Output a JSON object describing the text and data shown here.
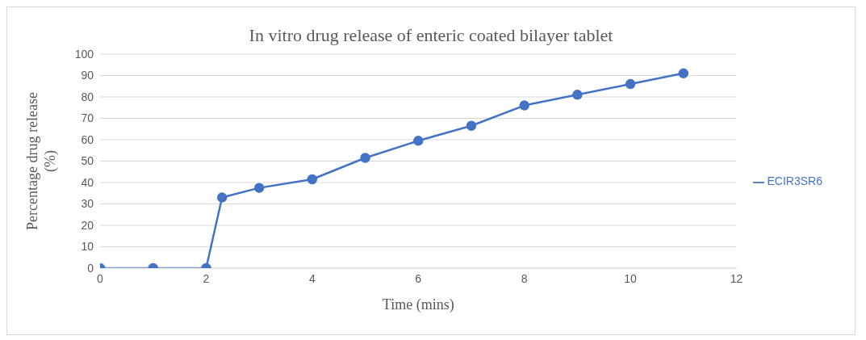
{
  "chart_data": {
    "type": "line",
    "title": "In vitro drug release of enteric coated bilayer tablet",
    "xlabel": "Time (mins)",
    "ylabel": "Percentage drug release (%)",
    "x": [
      0,
      1,
      2,
      2.3,
      3,
      4,
      5,
      6,
      7,
      8,
      9,
      10,
      11
    ],
    "series": [
      {
        "name": "ECIR3SR6",
        "color": "#4472c4",
        "values": [
          0,
          0,
          0,
          33,
          37.5,
          41.5,
          51.5,
          59.5,
          66.5,
          76,
          81,
          86,
          91
        ]
      }
    ],
    "xlim": [
      0,
      12
    ],
    "xticks": [
      0,
      2,
      4,
      6,
      8,
      10,
      12
    ],
    "ylim": [
      0,
      100
    ],
    "yticks": [
      0,
      10,
      20,
      30,
      40,
      50,
      60,
      70,
      80,
      90,
      100
    ],
    "grid": "y",
    "legend": "right",
    "marker": "circle",
    "line_style": "solid"
  }
}
